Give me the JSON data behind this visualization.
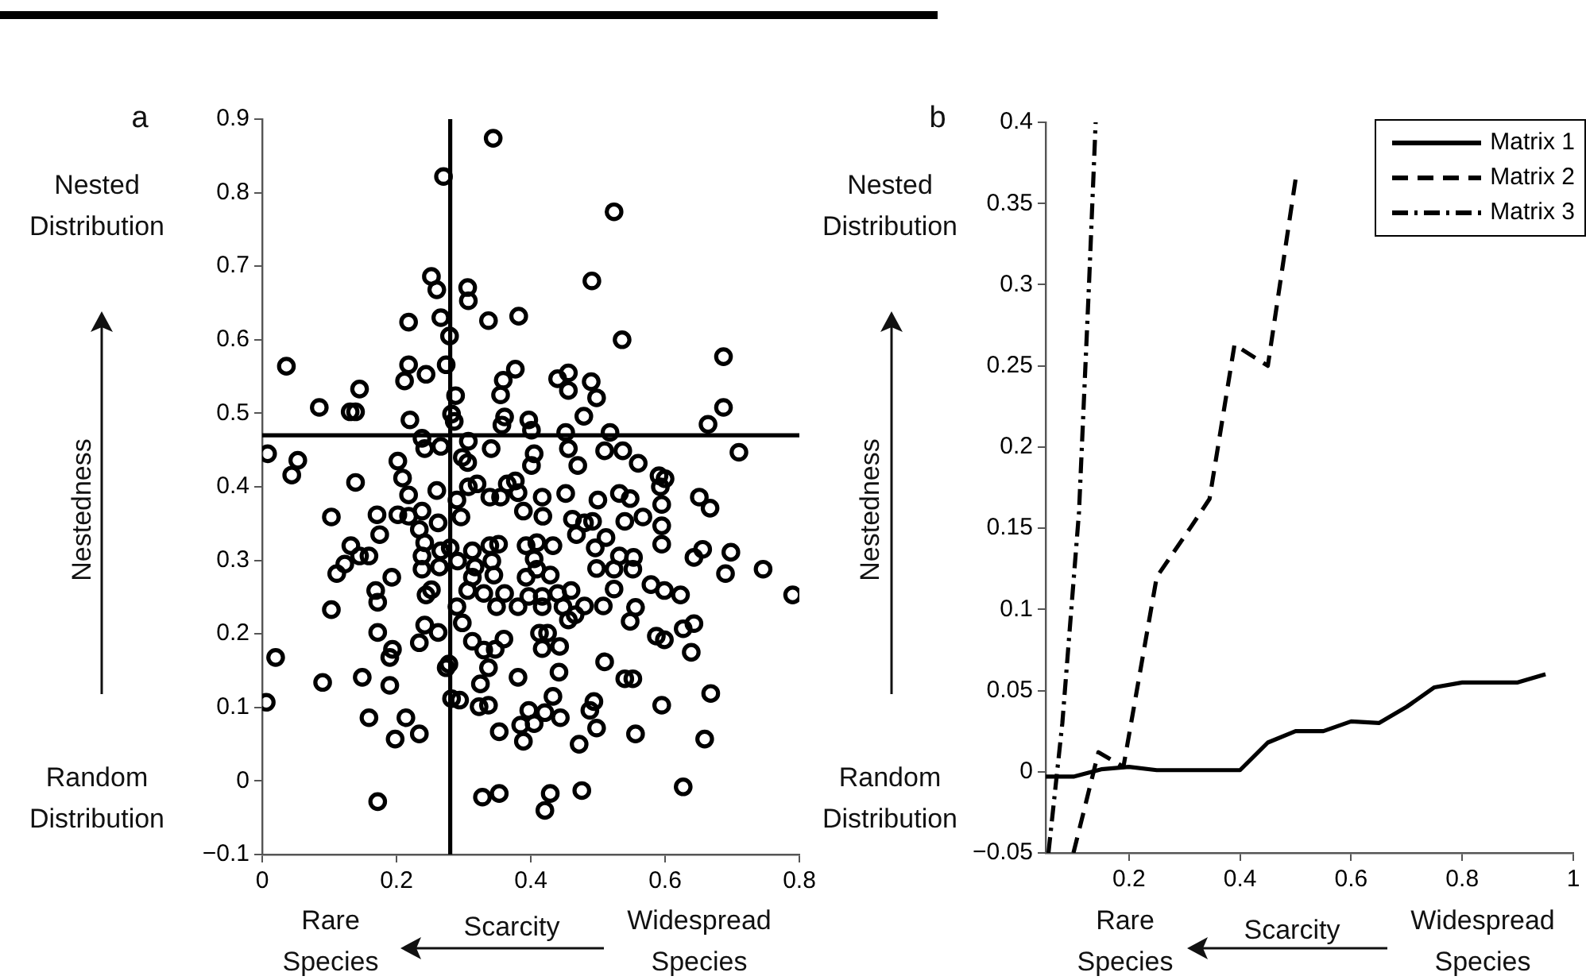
{
  "chart_data": [
    {
      "type": "scatter",
      "title": "a",
      "ylabel": "Nestedness",
      "xlabel": "Scarcity",
      "annotations": [
        "Nested Distribution",
        "Random Distribution",
        "Rare Species",
        "Widespread Species"
      ],
      "color": "#000000",
      "marker": "circle",
      "x": [
        0.344,
        0.27,
        0.524,
        0.252,
        0.26,
        0.306,
        0.307,
        0.491,
        0.218,
        0.266,
        0.337,
        0.382,
        0.279,
        0.536,
        0.036,
        0.218,
        0.244,
        0.212,
        0.274,
        0.145,
        0.085,
        0.131,
        0.139,
        0.22,
        0.288,
        0.282,
        0.286,
        0.359,
        0.355,
        0.377,
        0.361,
        0.357,
        0.397,
        0.401,
        0.44,
        0.456,
        0.456,
        0.49,
        0.498,
        0.479,
        0.687,
        0.687,
        0.664,
        0.71,
        0.008,
        0.053,
        0.044,
        0.139,
        0.202,
        0.209,
        0.242,
        0.238,
        0.266,
        0.307,
        0.298,
        0.306,
        0.341,
        0.405,
        0.401,
        0.452,
        0.456,
        0.47,
        0.518,
        0.51,
        0.537,
        0.56,
        0.591,
        0.6,
        0.365,
        0.377,
        0.381,
        0.218,
        0.26,
        0.29,
        0.307,
        0.32,
        0.339,
        0.355,
        0.389,
        0.417,
        0.418,
        0.452,
        0.5,
        0.532,
        0.548,
        0.593,
        0.595,
        0.651,
        0.667,
        0.103,
        0.171,
        0.202,
        0.218,
        0.238,
        0.262,
        0.296,
        0.234,
        0.175,
        0.462,
        0.48,
        0.492,
        0.512,
        0.54,
        0.567,
        0.595,
        0.595,
        0.468,
        0.132,
        0.145,
        0.159,
        0.123,
        0.111,
        0.193,
        0.238,
        0.242,
        0.238,
        0.264,
        0.266,
        0.28,
        0.291,
        0.313,
        0.317,
        0.339,
        0.352,
        0.342,
        0.313,
        0.306,
        0.33,
        0.345,
        0.361,
        0.349,
        0.393,
        0.409,
        0.433,
        0.405,
        0.409,
        0.393,
        0.429,
        0.381,
        0.397,
        0.417,
        0.417,
        0.44,
        0.448,
        0.46,
        0.456,
        0.466,
        0.48,
        0.508,
        0.498,
        0.496,
        0.524,
        0.524,
        0.532,
        0.552,
        0.553,
        0.556,
        0.548,
        0.579,
        0.599,
        0.623,
        0.643,
        0.656,
        0.69,
        0.698,
        0.746,
        0.79,
        0.103,
        0.172,
        0.169,
        0.244,
        0.252,
        0.242,
        0.262,
        0.234,
        0.172,
        0.194,
        0.19,
        0.298,
        0.29,
        0.313,
        0.33,
        0.347,
        0.36,
        0.337,
        0.413,
        0.425,
        0.417,
        0.443,
        0.587,
        0.599,
        0.627,
        0.643,
        0.639,
        0.02,
        0.278,
        0.274,
        0.51,
        0.09,
        0.149,
        0.19,
        0.381,
        0.442,
        0.54,
        0.552,
        0.325,
        0.282,
        0.294,
        0.323,
        0.337,
        0.397,
        0.421,
        0.433,
        0.444,
        0.494,
        0.488,
        0.668,
        0.595,
        0.006,
        0.159,
        0.214,
        0.198,
        0.234,
        0.353,
        0.385,
        0.389,
        0.405,
        0.472,
        0.498,
        0.556,
        0.659,
        0.172,
        0.328,
        0.353,
        0.429,
        0.421,
        0.476,
        0.627
      ],
      "values": [
        0.874,
        0.822,
        0.774,
        0.686,
        0.668,
        0.671,
        0.653,
        0.68,
        0.624,
        0.63,
        0.626,
        0.632,
        0.605,
        0.6,
        0.564,
        0.566,
        0.553,
        0.544,
        0.566,
        0.533,
        0.508,
        0.502,
        0.502,
        0.491,
        0.524,
        0.499,
        0.489,
        0.545,
        0.525,
        0.56,
        0.495,
        0.484,
        0.491,
        0.477,
        0.547,
        0.555,
        0.531,
        0.543,
        0.521,
        0.496,
        0.577,
        0.508,
        0.485,
        0.447,
        0.445,
        0.436,
        0.416,
        0.406,
        0.435,
        0.412,
        0.452,
        0.466,
        0.455,
        0.462,
        0.44,
        0.433,
        0.452,
        0.445,
        0.429,
        0.474,
        0.452,
        0.429,
        0.474,
        0.449,
        0.449,
        0.432,
        0.415,
        0.411,
        0.404,
        0.408,
        0.392,
        0.389,
        0.395,
        0.382,
        0.4,
        0.404,
        0.386,
        0.386,
        0.367,
        0.386,
        0.36,
        0.391,
        0.382,
        0.391,
        0.384,
        0.4,
        0.376,
        0.386,
        0.371,
        0.359,
        0.362,
        0.362,
        0.36,
        0.367,
        0.351,
        0.359,
        0.342,
        0.335,
        0.356,
        0.351,
        0.353,
        0.331,
        0.353,
        0.359,
        0.347,
        0.322,
        0.335,
        0.32,
        0.306,
        0.306,
        0.295,
        0.282,
        0.277,
        0.306,
        0.324,
        0.288,
        0.291,
        0.313,
        0.317,
        0.299,
        0.313,
        0.291,
        0.32,
        0.322,
        0.299,
        0.277,
        0.259,
        0.255,
        0.28,
        0.255,
        0.237,
        0.32,
        0.324,
        0.32,
        0.302,
        0.288,
        0.277,
        0.28,
        0.237,
        0.251,
        0.251,
        0.237,
        0.255,
        0.237,
        0.259,
        0.219,
        0.226,
        0.238,
        0.238,
        0.289,
        0.317,
        0.288,
        0.261,
        0.306,
        0.288,
        0.304,
        0.236,
        0.217,
        0.267,
        0.259,
        0.253,
        0.304,
        0.315,
        0.282,
        0.311,
        0.288,
        0.253,
        0.233,
        0.243,
        0.259,
        0.253,
        0.26,
        0.212,
        0.202,
        0.188,
        0.202,
        0.179,
        0.168,
        0.215,
        0.237,
        0.19,
        0.178,
        0.179,
        0.193,
        0.154,
        0.201,
        0.201,
        0.18,
        0.183,
        0.197,
        0.192,
        0.207,
        0.214,
        0.175,
        0.168,
        0.159,
        0.154,
        0.162,
        0.134,
        0.141,
        0.13,
        0.141,
        0.148,
        0.139,
        0.139,
        0.132,
        0.112,
        0.11,
        0.101,
        0.103,
        0.096,
        0.093,
        0.115,
        0.086,
        0.108,
        0.096,
        0.119,
        0.103,
        0.107,
        0.086,
        0.086,
        0.057,
        0.064,
        0.067,
        0.076,
        0.054,
        0.078,
        0.05,
        0.072,
        0.064,
        0.057,
        -0.028,
        -0.022,
        -0.017,
        -0.017,
        -0.04,
        -0.013,
        -0.008
      ],
      "xlim": [
        0,
        0.8
      ],
      "xticks": [
        0,
        0.2,
        0.4,
        0.6,
        0.8
      ],
      "ylim": [
        -0.1,
        0.9
      ],
      "yticks": [
        {
          "value": -0.1,
          "label": "−0.1"
        },
        0,
        0.1,
        0.2,
        0.3,
        0.4,
        0.5,
        0.6,
        0.7,
        0.8,
        0.9
      ],
      "ref_lines": [
        {
          "axis": "x",
          "value": 0.28,
          "color": "#000000"
        },
        {
          "axis": "y",
          "value": 0.47,
          "color": "#000000"
        }
      ]
    },
    {
      "type": "line",
      "title": "b",
      "ylabel": "Nestedness",
      "xlabel": "Scarcity",
      "annotations": [
        "Nested Distribution",
        "Random Distribution",
        "Rare Species",
        "Widespread Species"
      ],
      "legend": "top right",
      "marker": "none",
      "xlim": [
        0.05,
        1
      ],
      "xticks": [
        0.2,
        0.4,
        0.6,
        0.8,
        1
      ],
      "ylim": [
        -0.05,
        0.4
      ],
      "yticks": [
        {
          "value": -0.05,
          "label": "−0.05"
        },
        0,
        0.05,
        0.1,
        0.15,
        0.2,
        0.25,
        0.3,
        0.35,
        0.4
      ],
      "series": [
        {
          "name": "Matrix 1",
          "color": "#000000",
          "line_style": "solid",
          "x": [
            0.05,
            0.1,
            0.15,
            0.2,
            0.25,
            0.4,
            0.45,
            0.5,
            0.55,
            0.6,
            0.65,
            0.7,
            0.75,
            0.8,
            0.9,
            0.95
          ],
          "values": [
            -0.003,
            -0.003,
            0.0015,
            0.003,
            0.001,
            0.001,
            0.018,
            0.025,
            0.025,
            0.031,
            0.03,
            0.04,
            0.052,
            0.055,
            0.055,
            0.06
          ]
        },
        {
          "name": "Matrix 2",
          "color": "#000000",
          "line_style": "dashed",
          "x": [
            0.1,
            0.145,
            0.19,
            0.25,
            0.27,
            0.31,
            0.345,
            0.39,
            0.45,
            0.5
          ],
          "values": [
            -0.05,
            0.012,
            0.003,
            0.12,
            0.13,
            0.15,
            0.168,
            0.263,
            0.25,
            0.365
          ]
        },
        {
          "name": "Matrix 3",
          "color": "#000000",
          "line_style": "dashdot",
          "x": [
            0.055,
            0.08,
            0.11,
            0.128,
            0.14
          ],
          "values": [
            -0.05,
            0.03,
            0.16,
            0.3,
            0.4
          ]
        }
      ]
    }
  ]
}
